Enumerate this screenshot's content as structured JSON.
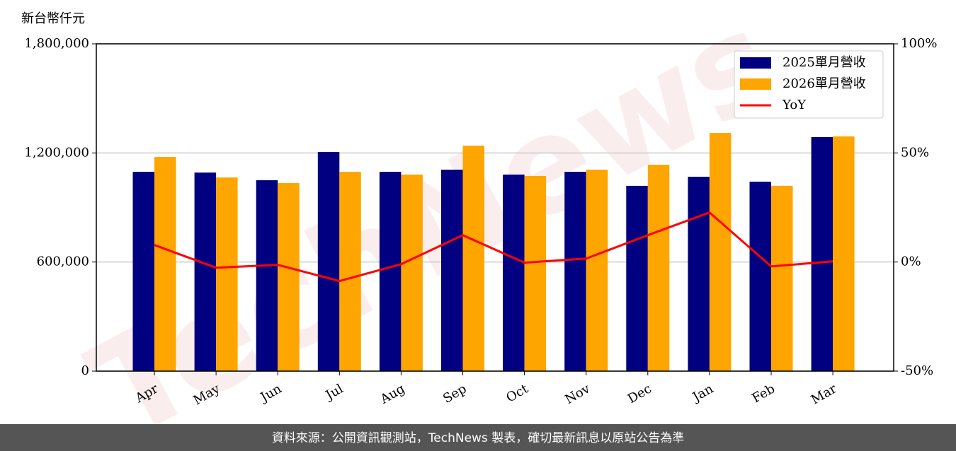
{
  "chart_data": {
    "type": "bar_line",
    "y_label": "新台幣仟元",
    "watermark": "TechNews",
    "footer": "資料來源：公開資訊觀測站，TechNews 製表，確切最新訊息以原站公告為準",
    "categories": [
      "Apr",
      "May",
      "Jun",
      "Jul",
      "Aug",
      "Sep",
      "Oct",
      "Nov",
      "Dec",
      "Jan",
      "Feb",
      "Mar"
    ],
    "series": [
      {
        "name": "2025單月營收",
        "color": "#000080",
        "values": [
          1096000,
          1092000,
          1050000,
          1205000,
          1096000,
          1108000,
          1081000,
          1096000,
          1019000,
          1069000,
          1042000,
          1287000
        ]
      },
      {
        "name": "2026單月營收",
        "color": "#ffa500",
        "values": [
          1178000,
          1065000,
          1034000,
          1096000,
          1081000,
          1240000,
          1073000,
          1108000,
          1135000,
          1310000,
          1019000,
          1291000
        ]
      },
      {
        "name": "YoY",
        "color": "#ff0000",
        "axis": "y2",
        "values": [
          7.8,
          -2.6,
          -1.3,
          -8.7,
          -1.0,
          12.3,
          -0.3,
          1.6,
          12.3,
          22.7,
          -2.0,
          0.3
        ]
      }
    ],
    "ylim": [
      0,
      1800000
    ],
    "yticks": [
      0,
      {
        "value": 600000,
        "label": "600,000"
      },
      {
        "value": 1200000,
        "label": "1,200,000"
      },
      {
        "value": 1800000,
        "label": "1,800,000"
      }
    ],
    "y2lim": [
      -50,
      100
    ],
    "y2ticks": [
      {
        "value": -50,
        "label": "-50%"
      },
      {
        "value": 0,
        "label": "0%"
      },
      {
        "value": 50,
        "label": "50%"
      },
      {
        "value": 100,
        "label": "100%"
      }
    ],
    "grid": true,
    "legend": "upper right"
  }
}
